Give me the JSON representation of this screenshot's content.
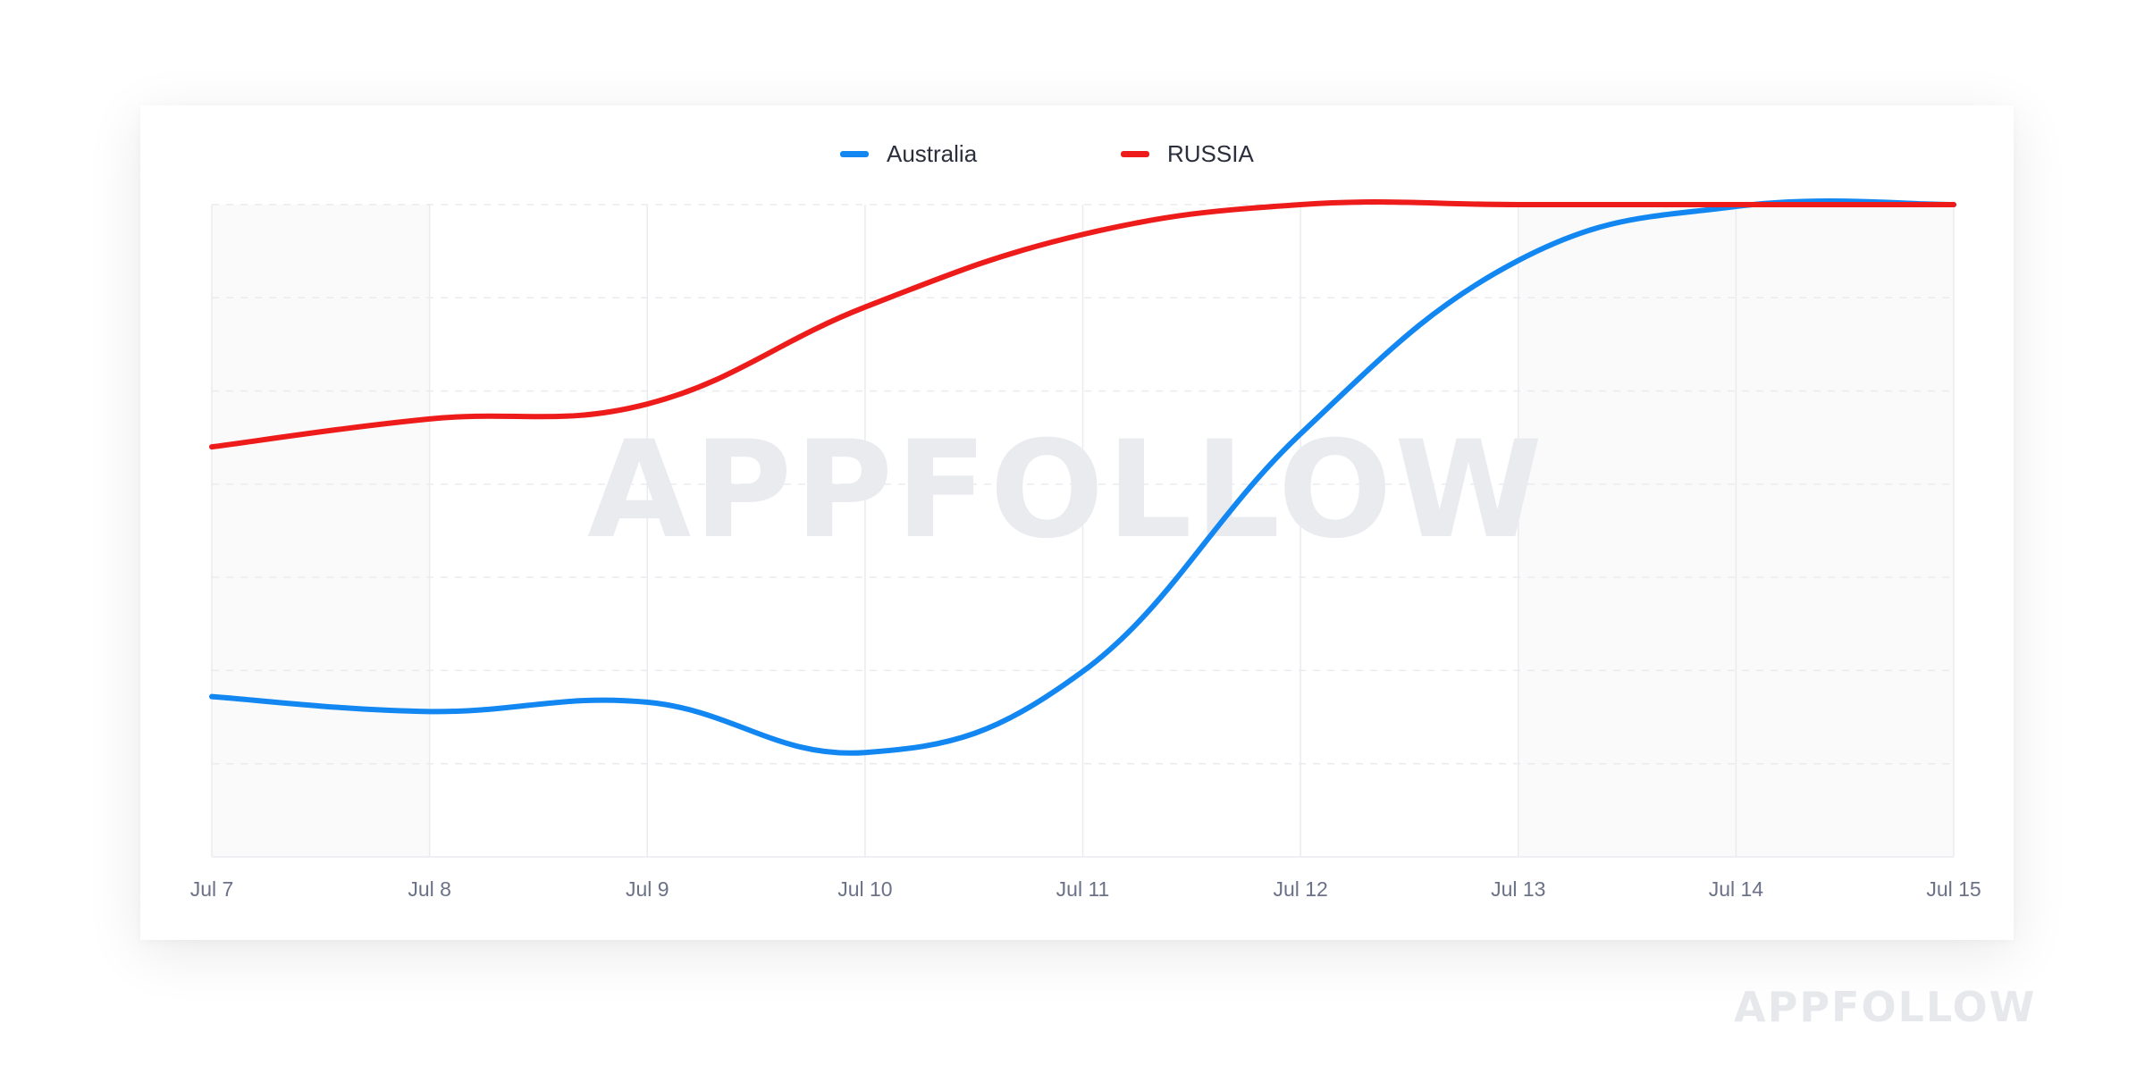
{
  "watermark": "APPFOLLOW",
  "colors": {
    "australia": "#1287f2",
    "russia": "#ee1b1b",
    "grid": "#e9ebef",
    "weekend_band": "#fafafa"
  },
  "chart_data": {
    "type": "line",
    "categories": [
      "Jul 7",
      "Jul 8",
      "Jul 9",
      "Jul 10",
      "Jul 11",
      "Jul 12",
      "Jul 13",
      "Jul 14",
      "Jul 15"
    ],
    "title": "",
    "xlabel": "",
    "ylabel": "",
    "ylim": [
      0,
      7
    ],
    "grid": true,
    "legend_position": "top-center",
    "series": [
      {
        "name": "Australia",
        "color": "#1287f2",
        "values": [
          1.72,
          1.56,
          1.66,
          1.12,
          1.99,
          4.54,
          6.4,
          6.98,
          7
        ]
      },
      {
        "name": "RUSSIA",
        "color": "#ee1b1b",
        "values": [
          4.4,
          4.7,
          4.86,
          5.9,
          6.68,
          7,
          7,
          7,
          7
        ]
      }
    ]
  }
}
